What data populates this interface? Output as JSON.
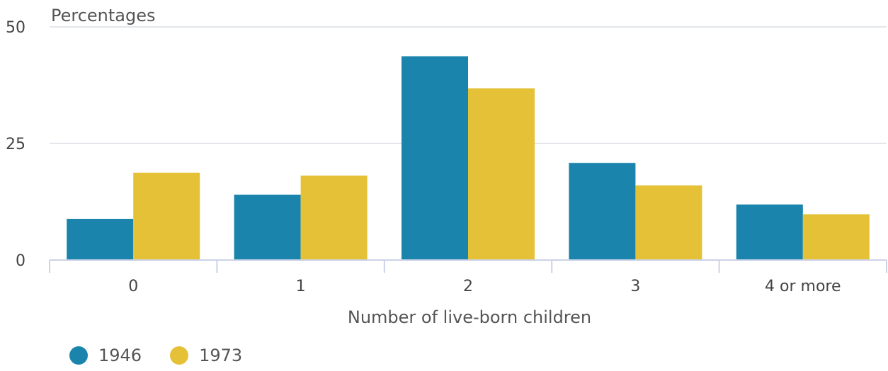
{
  "chart_data": {
    "type": "bar",
    "title": "",
    "ylabel": "Percentages",
    "xlabel": "Number of live-born children",
    "categories": [
      "0",
      "1",
      "2",
      "3",
      "4 or more"
    ],
    "ylim": [
      0,
      50
    ],
    "yticks": [
      "0",
      "25",
      "50"
    ],
    "grid": true,
    "legend_position": "bottom-left",
    "series": [
      {
        "name": "1946",
        "color": "#1a84ad",
        "values": [
          8.8,
          14,
          43.7,
          20.8,
          11.9
        ]
      },
      {
        "name": "1973",
        "color": "#e4c136",
        "values": [
          18.7,
          18.1,
          36.8,
          16,
          9.8
        ]
      }
    ]
  }
}
